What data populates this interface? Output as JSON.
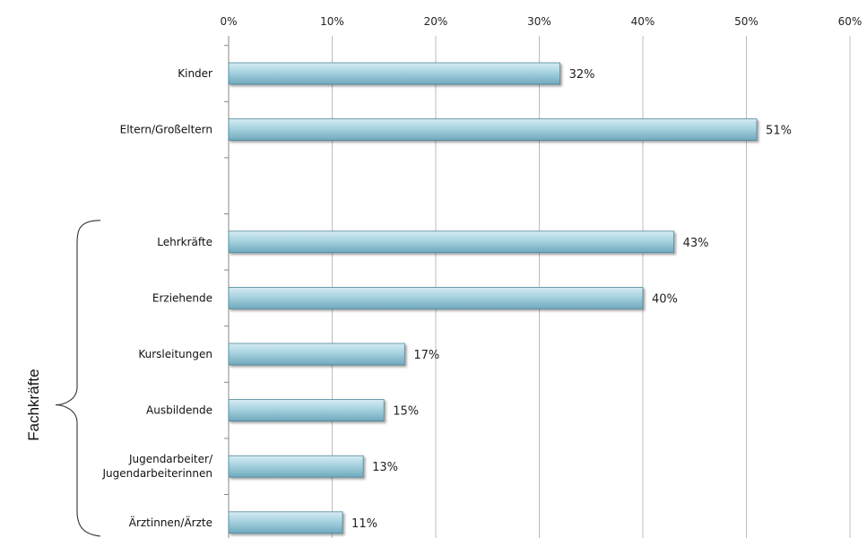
{
  "chart_data": {
    "type": "bar",
    "orientation": "horizontal",
    "categories": [
      "Kinder",
      "Eltern/Großeltern",
      "Lehrkräfte",
      "Erziehende",
      "Kursleitungen",
      "Ausbildende",
      "Jugendarbeiter/ Jugendarbeiterinnen",
      "Ärztinnen/Ärzte"
    ],
    "category_lines": [
      [
        "Kinder"
      ],
      [
        "Eltern/Großeltern"
      ],
      [
        "Lehrkräfte"
      ],
      [
        "Erziehende"
      ],
      [
        "Kursleitungen"
      ],
      [
        "Ausbildende"
      ],
      [
        "Jugendarbeiter/",
        "Jugendarbeiterinnen"
      ],
      [
        "Ärztinnen/Ärzte"
      ]
    ],
    "values": [
      32,
      51,
      43,
      40,
      17,
      15,
      13,
      11
    ],
    "data_labels": [
      "32%",
      "51%",
      "43%",
      "40%",
      "17%",
      "15%",
      "13%",
      "11%"
    ],
    "x_ticks": [
      "0%",
      "10%",
      "20%",
      "30%",
      "40%",
      "50%",
      "60%"
    ],
    "xlim": [
      0,
      60
    ],
    "x_axis_position": "top",
    "grid": true,
    "bar_color": "#8cc4d6",
    "group_bracket": {
      "label": "Fachkräfte",
      "covers": [
        "Lehrkräfte",
        "Erziehende",
        "Kursleitungen",
        "Ausbildende",
        "Jugendarbeiter/ Jugendarbeiterinnen",
        "Ärztinnen/Ärzte"
      ]
    }
  }
}
